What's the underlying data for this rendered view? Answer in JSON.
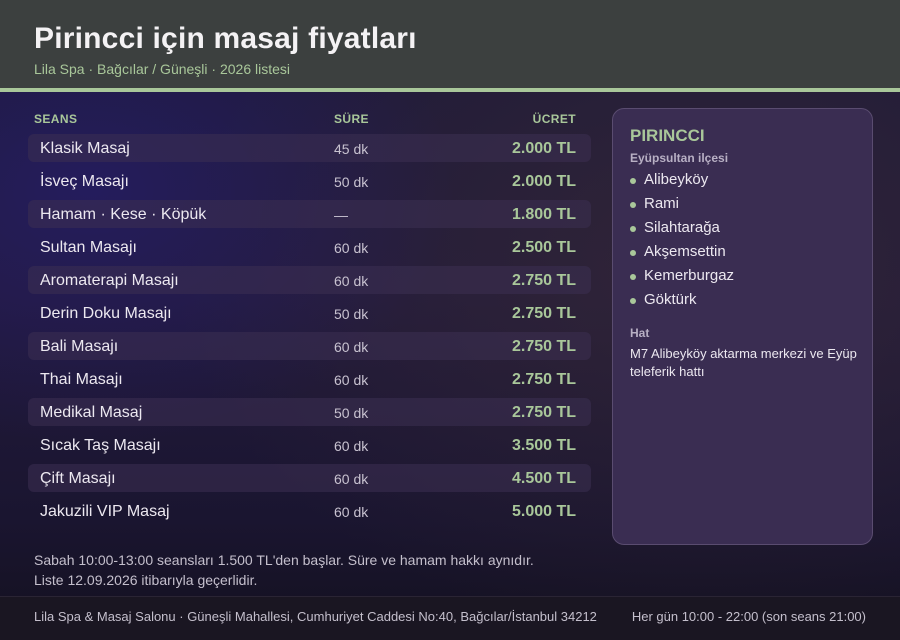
{
  "header": {
    "title": "Pirincci için masaj fiyatları",
    "subtitle": "Lila Spa · Bağcılar / Güneşli · 2026 listesi"
  },
  "colors": {
    "accent": "#a9c79a",
    "header_bg": "#3c403f",
    "panel_bg": "#3a2d52",
    "footer_bg": "#1a1622"
  },
  "table": {
    "columns": {
      "service": "SEANS",
      "duration": "SÜRE",
      "price": "ÜCRET"
    },
    "rows": [
      {
        "name": "Klasik Masaj",
        "duration": "45 dk",
        "price": "2.000 TL"
      },
      {
        "name": "İsveç Masajı",
        "duration": "50 dk",
        "price": "2.000 TL"
      },
      {
        "name": "Hamam · Kese · Köpük",
        "duration": "—",
        "price": "1.800 TL"
      },
      {
        "name": "Sultan Masajı",
        "duration": "60 dk",
        "price": "2.500 TL"
      },
      {
        "name": "Aromaterapi Masajı",
        "duration": "60 dk",
        "price": "2.750 TL"
      },
      {
        "name": "Derin Doku Masajı",
        "duration": "50 dk",
        "price": "2.750 TL"
      },
      {
        "name": "Bali Masajı",
        "duration": "60 dk",
        "price": "2.750 TL"
      },
      {
        "name": "Thai Masajı",
        "duration": "60 dk",
        "price": "2.750 TL"
      },
      {
        "name": "Medikal Masaj",
        "duration": "50 dk",
        "price": "2.750 TL"
      },
      {
        "name": "Sıcak Taş Masajı",
        "duration": "60 dk",
        "price": "3.500 TL"
      },
      {
        "name": "Çift Masajı",
        "duration": "60 dk",
        "price": "4.500 TL"
      },
      {
        "name": "Jakuzili VIP Masaj",
        "duration": "60 dk",
        "price": "5.000 TL"
      }
    ]
  },
  "panel": {
    "title": "PIRINCCI",
    "district": "Eyüpsultan ilçesi",
    "neighborhoods": [
      "Alibeyköy",
      "Rami",
      "Silahtarağa",
      "Akşemsettin",
      "Kemerburgaz",
      "Göktürk"
    ],
    "line_label": "Hat",
    "line_text": "M7 Alibeyköy aktarma merkezi ve Eyüp teleferik hattı"
  },
  "notes": {
    "line1": "Sabah 10:00-13:00 seansları 1.500 TL'den başlar. Süre ve hamam hakkı aynıdır.",
    "line2": "Liste 12.09.2026 itibarıyla geçerlidir."
  },
  "footer": {
    "address": "Lila Spa & Masaj Salonu · Güneşli Mahallesi, Cumhuriyet Caddesi No:40, Bağcılar/İstanbul 34212",
    "hours": "Her gün 10:00 - 22:00 (son seans 21:00)"
  }
}
